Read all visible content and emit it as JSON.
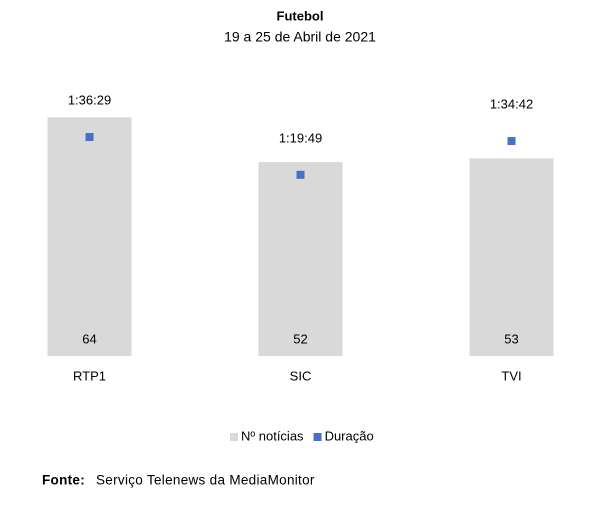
{
  "chart_data": {
    "type": "bar",
    "title": "Futebol",
    "subtitle": "19 a 25 de Abril de 2021",
    "categories": [
      "RTP1",
      "SIC",
      "TVI"
    ],
    "series": [
      {
        "name": "Nº notícias",
        "color": "#d9d9d9",
        "values": [
          64,
          52,
          53
        ]
      },
      {
        "name": "Duração",
        "color": "#4472c4",
        "axis": "y2",
        "values": [
          5789,
          4789,
          5682
        ],
        "value_labels": [
          "1:36:29",
          "1:19:49",
          "1:34:42"
        ]
      }
    ],
    "ylim": [
      0,
      70
    ],
    "y2lim": [
      0,
      6900
    ],
    "grid": false,
    "legend": "bottom",
    "source": {
      "label": "Fonte:",
      "text": "Serviço Telenews da MediaMonitor"
    }
  }
}
